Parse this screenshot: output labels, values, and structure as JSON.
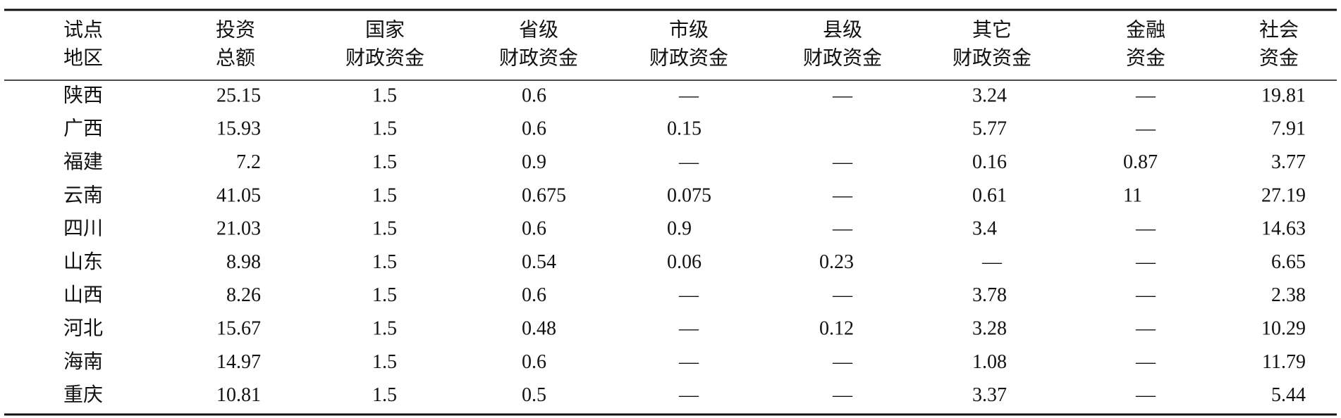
{
  "table": {
    "header": [
      [
        "试点",
        "地区"
      ],
      [
        "投资",
        "总额"
      ],
      [
        "国家",
        "财政资金"
      ],
      [
        "省级",
        "财政资金"
      ],
      [
        "市级",
        "财政资金"
      ],
      [
        "县级",
        "财政资金"
      ],
      [
        "其它",
        "财政资金"
      ],
      [
        "金融",
        "资金"
      ],
      [
        "社会",
        "资金"
      ]
    ],
    "rows": [
      [
        "陕西",
        "25.15",
        "1.5",
        "0.6",
        "—",
        "—",
        "3.24",
        "—",
        "19.81"
      ],
      [
        "广西",
        "15.93",
        "1.5",
        "0.6",
        "0.15",
        null,
        "5.77",
        "—",
        "7.91"
      ],
      [
        "福建",
        "7.2",
        "1.5",
        "0.9",
        "—",
        "—",
        "0.16",
        "0.87",
        "3.77"
      ],
      [
        "云南",
        "41.05",
        "1.5",
        "0.675",
        "0.075",
        "—",
        "0.61",
        "11",
        "27.19"
      ],
      [
        "四川",
        "21.03",
        "1.5",
        "0.6",
        "0.9",
        "—",
        "3.4",
        "—",
        "14.63"
      ],
      [
        "山东",
        "8.98",
        "1.5",
        "0.54",
        "0.06",
        "0.23",
        "—",
        "—",
        "6.65"
      ],
      [
        "山西",
        "8.26",
        "1.5",
        "0.6",
        "—",
        "—",
        "3.78",
        "—",
        "2.38"
      ],
      [
        "河北",
        "15.67",
        "1.5",
        "0.48",
        "—",
        "0.12",
        "3.28",
        "—",
        "10.29"
      ],
      [
        "海南",
        "14.97",
        "1.5",
        "0.6",
        "—",
        "—",
        "1.08",
        "—",
        "11.79"
      ],
      [
        "重庆",
        "10.81",
        "1.5",
        "0.5",
        "—",
        "—",
        "3.37",
        "—",
        "5.44"
      ]
    ]
  }
}
